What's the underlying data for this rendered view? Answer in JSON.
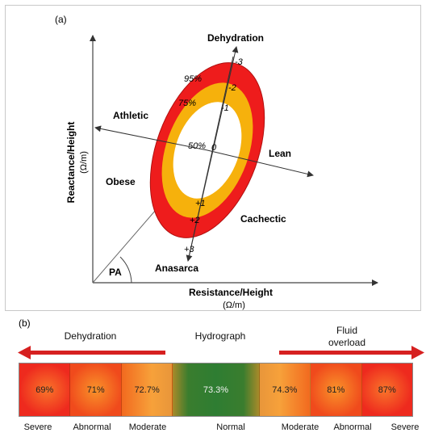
{
  "panel_a": {
    "label": "(a)",
    "y_axis_label": "Reactance/Height",
    "y_axis_unit": "(Ω/m)",
    "x_axis_label": "Resistance/Height",
    "x_axis_unit": "(Ω/m)",
    "axis_labels": {
      "dehydration": "Dehydration",
      "anasarca": "Anasarca",
      "athletic": "Athletic",
      "lean": "Lean",
      "obese": "Obese",
      "cachectic": "Cachectic",
      "pa": "PA"
    },
    "ellipse_labels": {
      "p95": "95%",
      "p75": "75%",
      "p50": "50%"
    },
    "scale_ticks": {
      "m3": "-3",
      "m2": "-2",
      "m1": "-1",
      "zero": "0",
      "p1": "+1",
      "p2": "+2",
      "p3": "+3"
    },
    "colors": {
      "outer": "#ee1c1c",
      "middle": "#f6b10c",
      "inner": "#ffffff"
    }
  },
  "panel_b": {
    "label": "(b)",
    "headings": {
      "dehydration": "Dehydration",
      "hydrograph": "Hydrograph",
      "fluid_line1": "Fluid",
      "fluid_line2": "overload"
    },
    "segments": [
      {
        "value": "69%",
        "category": "Severe"
      },
      {
        "value": "71%",
        "category": "Abnormal"
      },
      {
        "value": "72.7%",
        "category": "Moderate"
      },
      {
        "value": "73.3%",
        "category": "Normal"
      },
      {
        "value": "74.3%",
        "category": "Moderate"
      },
      {
        "value": "81%",
        "category": "Abnormal"
      },
      {
        "value": "87%",
        "category": "Severe"
      }
    ],
    "colors": {
      "severe": "#ee2a1e",
      "moderate": "#f7941d",
      "normal": "#2e7d32",
      "arrow": "#d62020"
    }
  }
}
